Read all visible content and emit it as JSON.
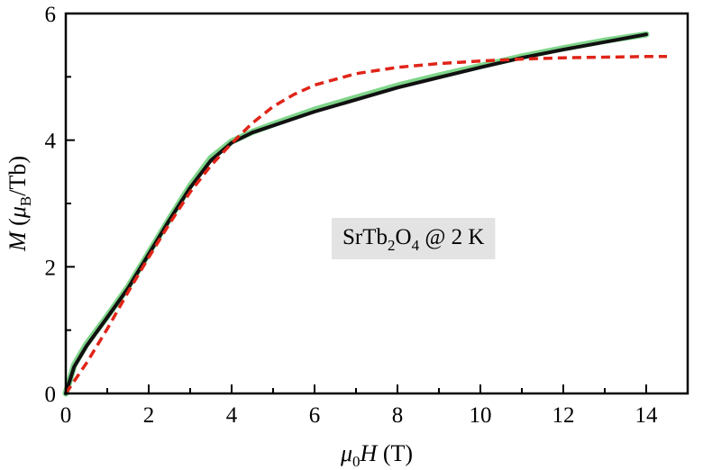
{
  "chart_data": {
    "type": "line",
    "xlabel": {
      "italic": "μ",
      "sub": "0",
      "italic2": "H",
      "rest": " (T)"
    },
    "ylabel": {
      "italic": "M",
      "rest1": " (",
      "mu": "μ",
      "sub": "B",
      "rest2": "/Tb)"
    },
    "xlim": [
      0,
      15
    ],
    "ylim": [
      0,
      6
    ],
    "xticks": [
      "0",
      "2",
      "4",
      "6",
      "8",
      "10",
      "12",
      "14"
    ],
    "yticks": [
      "0",
      "2",
      "4",
      "6"
    ],
    "grid": false,
    "annotation": {
      "pre": "SrTb",
      "sub1": "2",
      "mid": "O",
      "sub2": "4",
      "post": " @ 2 K",
      "x": 8.5,
      "y": 2.4
    },
    "series": [
      {
        "style": "solid-green",
        "color": "#7fd58a",
        "x": [
          0,
          0.2,
          0.5,
          1.0,
          1.5,
          2.0,
          2.5,
          3.0,
          3.5,
          4.0,
          4.5,
          5.0,
          6.0,
          7.0,
          8.0,
          9.0,
          10.0,
          11.0,
          12.0,
          13.0,
          14.0
        ],
        "y": [
          0,
          0.45,
          0.78,
          1.22,
          1.68,
          2.22,
          2.76,
          3.28,
          3.72,
          3.98,
          4.13,
          4.25,
          4.48,
          4.67,
          4.86,
          5.02,
          5.17,
          5.32,
          5.45,
          5.57,
          5.67
        ]
      },
      {
        "style": "solid-black",
        "color": "#111111",
        "x": [
          0,
          0.2,
          0.5,
          1.0,
          1.5,
          2.0,
          2.5,
          3.0,
          3.5,
          4.0,
          4.5,
          5.0,
          6.0,
          7.0,
          8.0,
          9.0,
          10.0,
          11.0,
          12.0,
          13.0,
          14.0
        ],
        "y": [
          0,
          0.42,
          0.75,
          1.2,
          1.66,
          2.2,
          2.74,
          3.25,
          3.68,
          3.96,
          4.12,
          4.23,
          4.45,
          4.64,
          4.83,
          4.99,
          5.15,
          5.3,
          5.43,
          5.55,
          5.67
        ]
      },
      {
        "style": "dashed-red",
        "color": "#e02418",
        "x": [
          0,
          0.5,
          1.0,
          1.5,
          2.0,
          2.5,
          3.0,
          3.5,
          4.0,
          4.5,
          5.0,
          5.5,
          6.0,
          7.0,
          8.0,
          9.0,
          10.0,
          11.0,
          12.0,
          13.0,
          14.0,
          14.5
        ],
        "y": [
          0,
          0.48,
          1.02,
          1.6,
          2.15,
          2.68,
          3.18,
          3.6,
          3.95,
          4.27,
          4.53,
          4.72,
          4.87,
          5.05,
          5.15,
          5.21,
          5.25,
          5.28,
          5.3,
          5.31,
          5.32,
          5.32
        ]
      }
    ]
  }
}
